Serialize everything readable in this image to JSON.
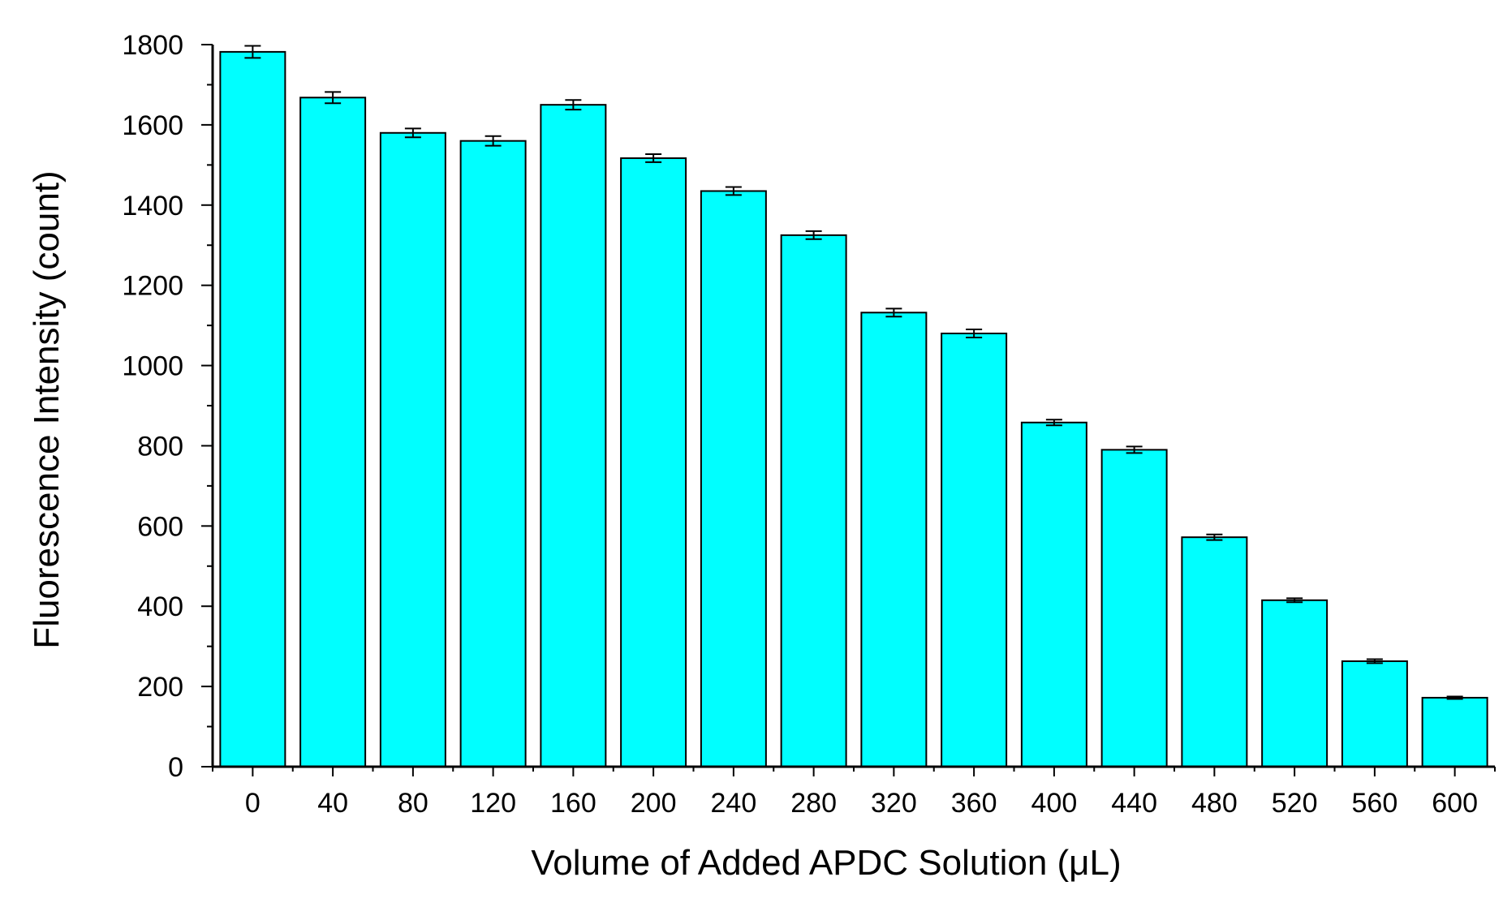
{
  "chart_data": {
    "type": "bar",
    "xlabel": "Volume of Added APDC Solution (μL)",
    "ylabel": "Fluorescence Intensity (count)",
    "categories": [
      "0",
      "40",
      "80",
      "120",
      "160",
      "200",
      "240",
      "280",
      "320",
      "360",
      "400",
      "440",
      "480",
      "520",
      "560",
      "600"
    ],
    "values": [
      1782,
      1668,
      1580,
      1560,
      1650,
      1517,
      1435,
      1325,
      1132,
      1080,
      858,
      790,
      572,
      415,
      263,
      172
    ],
    "errors": [
      15,
      14,
      11,
      12,
      12,
      10,
      10,
      10,
      10,
      10,
      7,
      8,
      7,
      5,
      5,
      3
    ],
    "ylim": [
      0,
      1800
    ],
    "yticks": [
      0,
      200,
      400,
      600,
      800,
      1000,
      1200,
      1400,
      1600,
      1800
    ],
    "grid": false,
    "legend": "none",
    "colors": {
      "bar_fill": "#00FFFF",
      "bar_stroke": "#000000",
      "axis": "#000000"
    }
  }
}
